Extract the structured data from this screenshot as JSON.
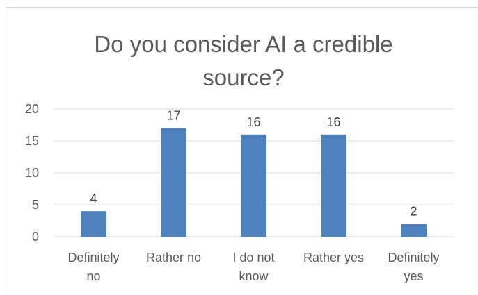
{
  "chart_data": {
    "type": "bar",
    "title": "Do you consider AI a credible source?",
    "categories": [
      [
        "Definitely",
        "no"
      ],
      [
        "Rather no"
      ],
      [
        "I do not",
        "know"
      ],
      [
        "Rather yes"
      ],
      [
        "Definitely",
        "yes"
      ]
    ],
    "values": [
      4,
      17,
      16,
      16,
      2
    ],
    "data_labels": [
      "4",
      "17",
      "16",
      "16",
      "2"
    ],
    "yticks": [
      0,
      5,
      10,
      15,
      20
    ],
    "ylim": [
      0,
      20
    ],
    "grid": true,
    "bar_color": "#4f81bd",
    "grid_color": "#d9d9d9",
    "xlabel": "",
    "ylabel": ""
  }
}
